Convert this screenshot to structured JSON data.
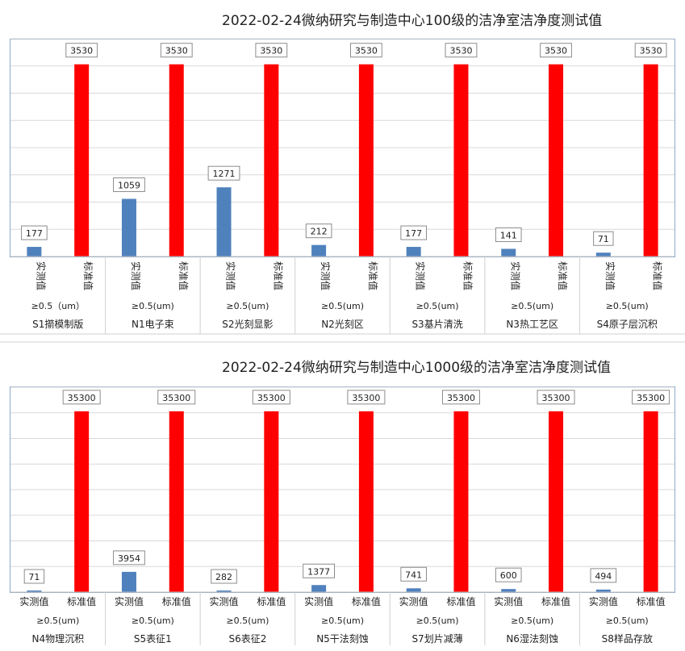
{
  "chart_data": [
    {
      "type": "bar",
      "title": "2022-02-24微纳研究与制造中心100级的洁净室洁净度测试值",
      "ylim": [
        0,
        4000
      ],
      "grid": true,
      "vertical_labels": true,
      "colors": {
        "measured": "#4f81bd",
        "standard": "#ff0000"
      },
      "categories": [
        {
          "name": "S1擶模制版",
          "size": "≥0.5（um）",
          "measured_label": "实测值",
          "standard_label": "标准值",
          "measured": 177,
          "standard": 3530
        },
        {
          "name": "N1电子束",
          "size": "≥0.5(um)",
          "measured_label": "实测值",
          "standard_label": "标准值",
          "measured": 1059,
          "standard": 3530
        },
        {
          "name": "S2光刻显影",
          "size": "≥0.5(um)",
          "measured_label": "实测值",
          "standard_label": "标准值",
          "measured": 1271,
          "standard": 3530
        },
        {
          "name": "N2光刻区",
          "size": "≥0.5(um)",
          "measured_label": "实测值",
          "standard_label": "标准值",
          "measured": 212,
          "standard": 3530
        },
        {
          "name": "S3基片清洗",
          "size": "≥0.5(um)",
          "measured_label": "实测值",
          "standard_label": "标准值",
          "measured": 177,
          "standard": 3530
        },
        {
          "name": "N3热工艺区",
          "size": "≥0.5(um)",
          "measured_label": "实测值",
          "standard_label": "标准值",
          "measured": 141,
          "standard": 3530
        },
        {
          "name": "S4原子层沉积",
          "size": "≥0.5(um)",
          "measured_label": "实测值",
          "standard_label": "标准值",
          "measured": 71,
          "standard": 3530
        }
      ]
    },
    {
      "type": "bar",
      "title": "2022-02-24微纳研究与制造中心1000级的洁净室洁净度测试值",
      "ylim": [
        0,
        40000
      ],
      "grid": true,
      "vertical_labels": false,
      "colors": {
        "measured": "#4f81bd",
        "standard": "#ff0000"
      },
      "categories": [
        {
          "name": "N4物理沉积",
          "size": "≥0.5(um)",
          "measured_label": "实测值",
          "standard_label": "标准值",
          "measured": 71,
          "standard": 35300
        },
        {
          "name": "S5表征1",
          "size": "≥0.5(um)",
          "measured_label": "实测值",
          "standard_label": "标准值",
          "measured": 3954,
          "standard": 35300
        },
        {
          "name": "S6表征2",
          "size": "≥0.5(um)",
          "measured_label": "实测值",
          "standard_label": "标准值",
          "measured": 282,
          "standard": 35300
        },
        {
          "name": "N5干法刻蚀",
          "size": "≥0.5(um)",
          "measured_label": "实测值",
          "standard_label": "标准值",
          "measured": 1377,
          "standard": 35300
        },
        {
          "name": "S7划片减薄",
          "size": "≥0.5(um)",
          "measured_label": "实测值",
          "standard_label": "标准值",
          "measured": 741,
          "standard": 35300
        },
        {
          "name": "N6湿法刻蚀",
          "size": "≥0.5(um)",
          "measured_label": "实测值",
          "standard_label": "标准值",
          "measured": 600,
          "standard": 35300
        },
        {
          "name": "S8样品存放",
          "size": "≥0.5(um)",
          "measured_label": "实测值",
          "standard_label": "标准值",
          "measured": 494,
          "standard": 35300
        }
      ]
    }
  ]
}
